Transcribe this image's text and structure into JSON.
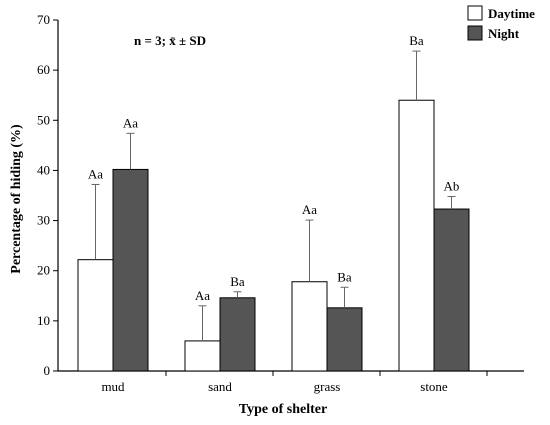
{
  "chart_data": {
    "type": "bar",
    "categories": [
      "mud",
      "sand",
      "grass",
      "stone"
    ],
    "series": [
      {
        "name": "Daytime",
        "color": "#ffffff",
        "values": [
          22.2,
          6.0,
          17.8,
          54.0
        ],
        "sd": [
          15.0,
          7.0,
          12.3,
          9.8
        ],
        "letters": [
          "Aa",
          "Aa",
          "Aa",
          "Ba"
        ]
      },
      {
        "name": "Night",
        "color": "#555555",
        "values": [
          40.2,
          14.6,
          12.6,
          32.3
        ],
        "sd": [
          7.2,
          1.2,
          4.1,
          2.5
        ],
        "letters": [
          "Aa",
          "Ba",
          "Ba",
          "Ab"
        ]
      }
    ],
    "xlabel": "Type of shelter",
    "ylabel": "Percentage of hiding (%)",
    "ylim": [
      0,
      70
    ],
    "yticks": [
      0,
      10,
      20,
      30,
      40,
      50,
      60,
      70
    ],
    "annotation": "n = 3; x̄ ± SD",
    "legend_position": "top-right",
    "grid": false
  }
}
